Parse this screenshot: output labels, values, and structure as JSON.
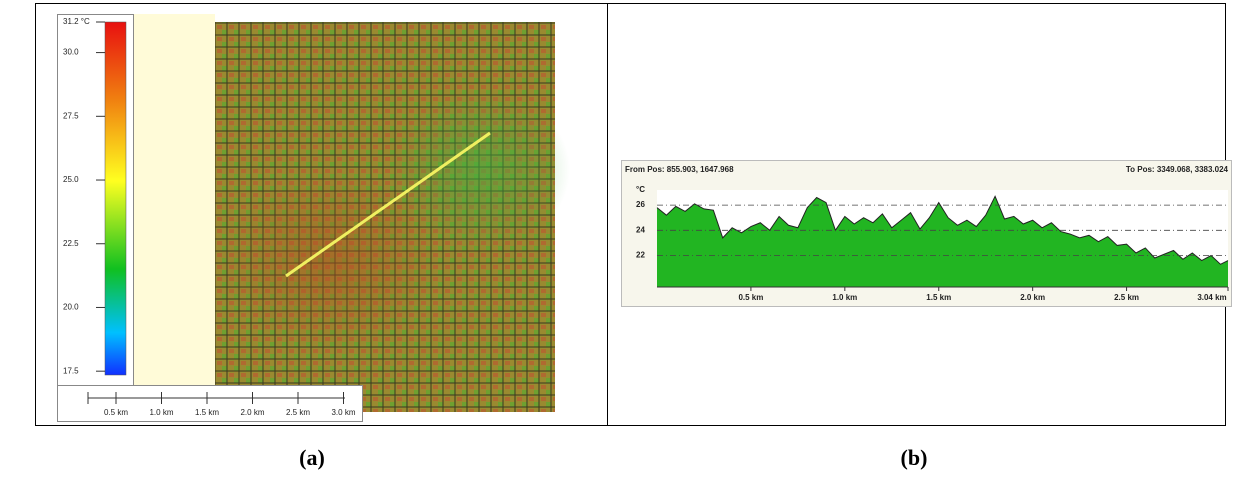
{
  "chart_data": [
    {
      "type": "colorbar",
      "title": "31.2 °C",
      "ylim": [
        17.35,
        31.2
      ],
      "yticks": [
        {
          "value": 17.5,
          "label": "17.5"
        },
        {
          "value": 20,
          "label": "20.0"
        },
        {
          "value": 22.5,
          "label": "22.5"
        },
        {
          "value": 25,
          "label": "25.0"
        },
        {
          "value": 27.5,
          "label": "27.5"
        },
        {
          "value": 30,
          "label": "30.0"
        }
      ],
      "scale_labels": [
        "0.5 km",
        "1.0 km",
        "1.5 km",
        "2.0 km",
        "2.5 km",
        "3.0 km"
      ],
      "panel_label": "(a)"
    },
    {
      "type": "area",
      "from_label": "From Pos: 855.903, 1647.968",
      "to_label": "To Pos: 3349.068, 3383.024",
      "ylabel": "°C",
      "color": "#22b522",
      "ylim": [
        19.5,
        27.2
      ],
      "yticks": [
        22,
        24,
        26
      ],
      "grid": true,
      "xlim": [
        0,
        3.04
      ],
      "xticks": [
        {
          "value": 0.5,
          "label": "0.5 km"
        },
        {
          "value": 1.0,
          "label": "1.0 km"
        },
        {
          "value": 1.5,
          "label": "1.5 km"
        },
        {
          "value": 2.0,
          "label": "2.0 km"
        },
        {
          "value": 2.5,
          "label": "2.5 km"
        },
        {
          "value": 3.04,
          "label": "3.04 km"
        }
      ],
      "x": [
        0,
        0.05,
        0.1,
        0.15,
        0.2,
        0.25,
        0.3,
        0.35,
        0.4,
        0.45,
        0.5,
        0.55,
        0.6,
        0.65,
        0.7,
        0.75,
        0.8,
        0.85,
        0.9,
        0.95,
        1.0,
        1.05,
        1.1,
        1.15,
        1.2,
        1.25,
        1.3,
        1.35,
        1.4,
        1.45,
        1.5,
        1.55,
        1.6,
        1.65,
        1.7,
        1.75,
        1.8,
        1.85,
        1.9,
        1.95,
        2.0,
        2.05,
        2.1,
        2.15,
        2.2,
        2.25,
        2.3,
        2.35,
        2.4,
        2.45,
        2.5,
        2.55,
        2.6,
        2.65,
        2.7,
        2.75,
        2.8,
        2.85,
        2.9,
        2.95,
        3.0,
        3.04
      ],
      "values": [
        25.8,
        25.2,
        25.9,
        25.5,
        26.1,
        25.7,
        25.6,
        23.4,
        24.2,
        23.8,
        24.3,
        24.6,
        24.0,
        25.1,
        24.4,
        24.2,
        25.8,
        26.6,
        26.2,
        24.0,
        25.1,
        24.5,
        25.0,
        24.6,
        25.3,
        24.2,
        24.8,
        25.4,
        24.1,
        25.0,
        26.2,
        25.0,
        24.4,
        24.8,
        24.3,
        25.2,
        26.7,
        24.9,
        25.1,
        24.5,
        24.8,
        24.2,
        24.6,
        23.9,
        23.7,
        23.4,
        23.6,
        23.1,
        23.5,
        22.8,
        22.9,
        22.2,
        22.6,
        21.8,
        22.1,
        22.4,
        21.7,
        22.2,
        21.6,
        22.0,
        21.3,
        21.6
      ],
      "panel_label": "(b)"
    }
  ]
}
